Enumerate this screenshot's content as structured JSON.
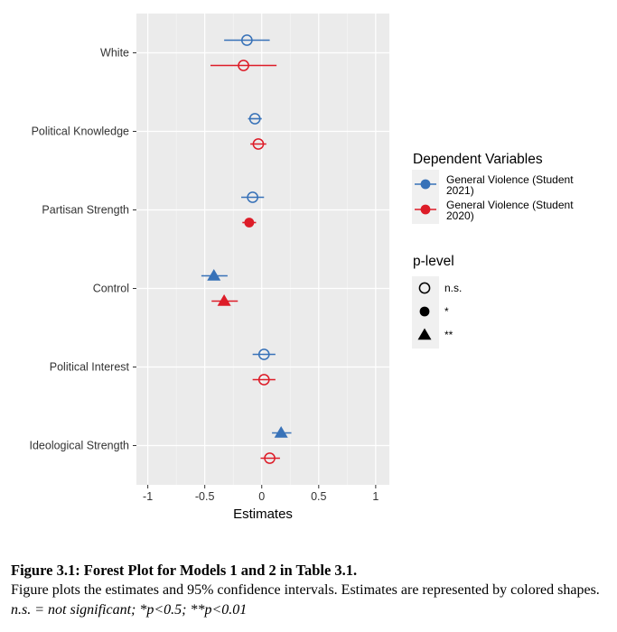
{
  "chart_data": {
    "type": "forest",
    "xlabel": "Estimates",
    "xlim": [
      -1.1,
      1.12
    ],
    "xticks": [
      -1,
      -0.5,
      0,
      0.5,
      1
    ],
    "xtick_labels": [
      "-1",
      "-0.5",
      "0",
      "0.5",
      "1"
    ],
    "categories": [
      "White",
      "Political Knowledge",
      "Partisan Strength",
      "Control",
      "Political Interest",
      "Ideological Strength"
    ],
    "grid": true,
    "legend_position": "right",
    "series": [
      {
        "name": "General Violence (Student 2021)",
        "name_lines": [
          "General Violence (Student",
          "2021)"
        ],
        "color": "#3872b8",
        "estimates": [
          -0.13,
          -0.06,
          -0.08,
          -0.42,
          0.02,
          0.17
        ],
        "ci_low": [
          -0.33,
          -0.12,
          -0.18,
          -0.53,
          -0.08,
          0.09
        ],
        "ci_high": [
          0.07,
          0.0,
          0.02,
          -0.3,
          0.12,
          0.26
        ],
        "p_level": [
          "n.s.",
          "n.s.",
          "n.s.",
          "**",
          "n.s.",
          "**"
        ]
      },
      {
        "name": "General Violence (Student 2020)",
        "name_lines": [
          "General Violence (Student",
          "2020)"
        ],
        "color": "#dd1c28",
        "estimates": [
          -0.16,
          -0.03,
          -0.11,
          -0.33,
          0.02,
          0.07
        ],
        "ci_low": [
          -0.45,
          -0.1,
          -0.17,
          -0.44,
          -0.08,
          -0.01
        ],
        "ci_high": [
          0.13,
          0.04,
          -0.05,
          -0.21,
          0.12,
          0.16
        ],
        "p_level": [
          "n.s.",
          "n.s.",
          "*",
          "**",
          "n.s.",
          "n.s."
        ]
      }
    ],
    "legend": {
      "color_title": "Dependent Variables",
      "shape_title": "p-level",
      "shape_items": [
        {
          "label": "n.s.",
          "shape": "open-circle"
        },
        {
          "label": "*",
          "shape": "filled-circle"
        },
        {
          "label": "**",
          "shape": "filled-triangle"
        }
      ]
    }
  },
  "caption": {
    "title": "Figure 3.1: Forest Plot for Models 1 and 2 in Table 3.1.",
    "body_plain": "Figure plots the estimates and 95% confidence intervals. Estimates are represented by colored shapes.",
    "body_italic": "n.s. = not significant; *p<0.5; **p<0.01"
  }
}
